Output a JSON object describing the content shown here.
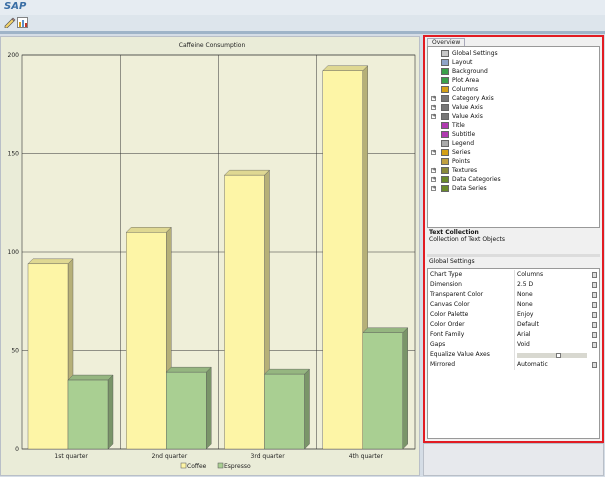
{
  "app": {
    "title": "SAP"
  },
  "toolbar": {
    "buttons": [
      {
        "icon": "edit-icon"
      },
      {
        "icon": "chart-settings-icon"
      }
    ]
  },
  "chart_data": {
    "type": "bar",
    "title": "Caffeine Consumption",
    "categories": [
      "1st quarter",
      "2nd quarter",
      "3rd quarter",
      "4th quarter"
    ],
    "series": [
      {
        "name": "Coffee",
        "values": [
          94,
          110,
          139,
          192
        ],
        "color": "#fdf5a6"
      },
      {
        "name": "Espresso",
        "values": [
          35,
          39,
          38,
          59
        ],
        "color": "#a9cf92"
      }
    ],
    "ylim": [
      0,
      200
    ],
    "yticks": [
      0,
      50,
      100,
      150,
      200
    ],
    "grid": true,
    "legend_position": "bottom",
    "dimension": "2.5D"
  },
  "overview": {
    "tab_label": "Overview",
    "items": [
      {
        "label": "Global Settings",
        "icon": "global-settings-icon",
        "expandable": false
      },
      {
        "label": "Layout",
        "icon": "layout-icon",
        "expandable": false
      },
      {
        "label": "Background",
        "icon": "background-icon",
        "expandable": false
      },
      {
        "label": "Plot Area",
        "icon": "plot-area-icon",
        "expandable": false
      },
      {
        "label": "Columns",
        "icon": "columns-icon",
        "expandable": false
      },
      {
        "label": "Category Axis",
        "icon": "category-axis-icon",
        "expandable": true
      },
      {
        "label": "Value Axis",
        "icon": "value-axis-icon",
        "expandable": true
      },
      {
        "label": "Value Axis",
        "icon": "value-axis-icon",
        "expandable": true
      },
      {
        "label": "Title",
        "icon": "title-icon",
        "expandable": false
      },
      {
        "label": "Subtitle",
        "icon": "subtitle-icon",
        "expandable": false
      },
      {
        "label": "Legend",
        "icon": "legend-icon",
        "expandable": false
      },
      {
        "label": "Series",
        "icon": "series-icon",
        "expandable": true
      },
      {
        "label": "Points",
        "icon": "points-icon",
        "expandable": false
      },
      {
        "label": "Textures",
        "icon": "textures-icon",
        "expandable": true
      },
      {
        "label": "Data Categories",
        "icon": "data-categories-icon",
        "expandable": true
      },
      {
        "label": "Data Series",
        "icon": "data-series-icon",
        "expandable": true
      }
    ]
  },
  "description": {
    "title": "Text Collection",
    "text": "Collection of Text Objects"
  },
  "global_settings": {
    "header": "Global Settings",
    "rows": [
      {
        "name": "Chart Type",
        "value": "Columns",
        "button": true
      },
      {
        "name": "Dimension",
        "value": "2.5 D",
        "button": true
      },
      {
        "name": "Transparent Color",
        "value": "None",
        "button": true
      },
      {
        "name": "Canvas Color",
        "value": "None",
        "button": true
      },
      {
        "name": "Color Palette",
        "value": "Enjoy",
        "button": true
      },
      {
        "name": "Color Order",
        "value": "Default",
        "button": true
      },
      {
        "name": "Font Family",
        "value": "Arial",
        "button": true
      },
      {
        "name": "Gaps",
        "value": "Void",
        "button": true
      },
      {
        "name": "Equalize Value Axes",
        "value": "",
        "slider": 0.6
      },
      {
        "name": "Mirrored",
        "value": "Automatic",
        "button": true
      }
    ]
  }
}
